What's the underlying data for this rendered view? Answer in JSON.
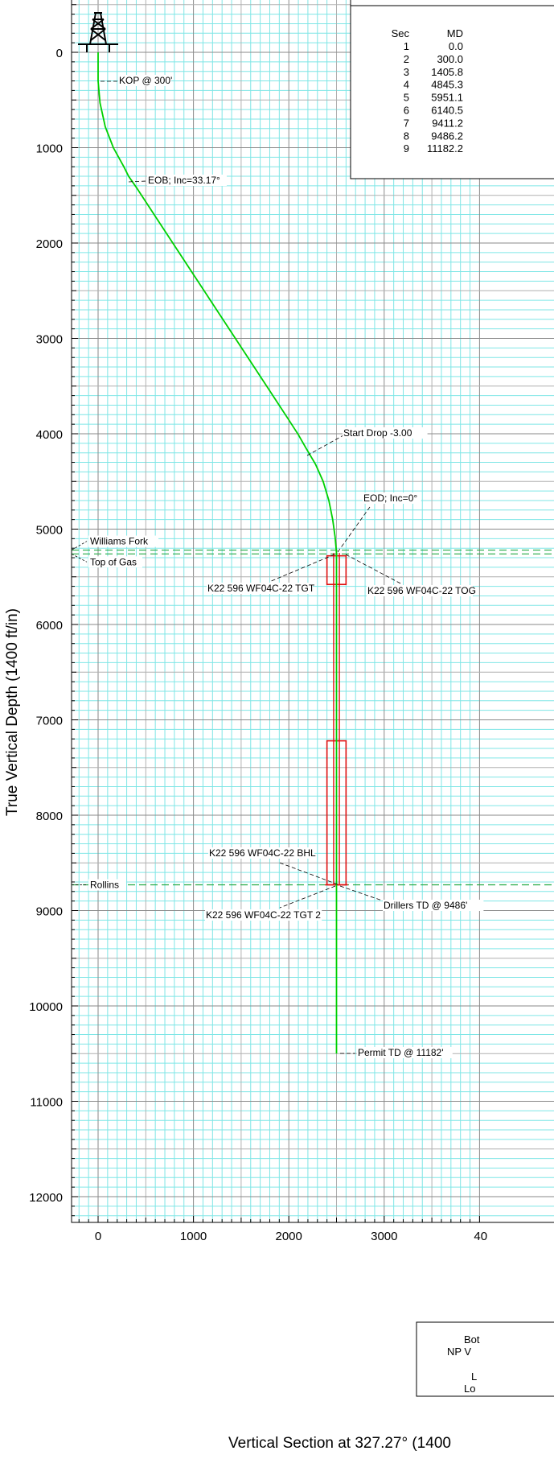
{
  "chart_data": {
    "type": "line",
    "xlabel": "Vertical Section at 327.27° (1400",
    "ylabel": "True Vertical Depth (1400 ft/in)",
    "x_ticks": [
      "0",
      "1000",
      "2000",
      "3000",
      "40"
    ],
    "y_ticks": [
      "0",
      "1000",
      "2000",
      "3000",
      "4000",
      "5000",
      "6000",
      "7000",
      "8000",
      "9000",
      "10000",
      "11000",
      "12000"
    ],
    "xlim": [
      -300,
      4000
    ],
    "ylim": [
      12150,
      -550
    ],
    "grid": true,
    "y_inverted": true,
    "series": [
      {
        "color": "#00d000",
        "x": [
          0,
          0,
          20,
          75,
          160,
          270,
          320,
          400,
          600,
          800,
          1000,
          1200,
          1400,
          1600,
          1800,
          2000,
          2100,
          2180,
          2280,
          2360,
          2420,
          2460,
          2485,
          2500,
          2500,
          2500
        ],
        "y": [
          0,
          300,
          530,
          780,
          1000,
          1200,
          1300,
          1415,
          1720,
          2025,
          2330,
          2635,
          2940,
          3245,
          3550,
          3855,
          4010,
          4150,
          4320,
          4500,
          4700,
          4900,
          5080,
          5250,
          7000,
          10500
        ]
      }
    ],
    "formations": [
      {
        "name": "Williams Fork",
        "tvd": 5220
      },
      {
        "name": "Top of Gas",
        "tvd": 5260
      },
      {
        "name": "Rollins",
        "tvd": 8730
      }
    ],
    "targets": [
      {
        "x0": 2400,
        "x1": 2600,
        "y0": 5280,
        "y1": 5580
      },
      {
        "x0": 2400,
        "x1": 2600,
        "y0": 7220,
        "y1": 8730
      }
    ],
    "annotations": [
      {
        "text": "KOP @ 300'",
        "x": 0,
        "y": 300
      },
      {
        "text": "EOB; Inc=33.17°",
        "x": 320,
        "y": 1360
      },
      {
        "text": "Start Drop -3.00",
        "x": 2180,
        "y": 4260
      },
      {
        "text": "EOD; Inc=0°",
        "x": 2500,
        "y": 5250
      },
      {
        "text": "K22 596 WF04C-22 TGT",
        "x": 2500,
        "y": 5280
      },
      {
        "text": "K22 596 WF04C-22 TOG",
        "x": 2500,
        "y": 5280
      },
      {
        "text": "K22 596 WF04C-22 BHL",
        "x": 2500,
        "y": 8730
      },
      {
        "text": "K22 596 WF04C-22 TGT 2",
        "x": 2500,
        "y": 8730
      },
      {
        "text": "Drillers TD @ 9486'",
        "x": 2500,
        "y": 8730
      },
      {
        "text": "Permit TD @ 11182'",
        "x": 2500,
        "y": 10500
      }
    ]
  },
  "section_table": {
    "headers": [
      "Sec",
      "MD"
    ],
    "rows": [
      [
        "1",
        "0.0"
      ],
      [
        "2",
        "300.0"
      ],
      [
        "3",
        "1405.8"
      ],
      [
        "4",
        "4845.3"
      ],
      [
        "5",
        "5951.1"
      ],
      [
        "6",
        "6140.5"
      ],
      [
        "7",
        "9411.2"
      ],
      [
        "8",
        "9486.2"
      ],
      [
        "9",
        "11182.2"
      ]
    ]
  },
  "info_box": {
    "line1": "Bot",
    "line2": "NP V",
    "line3": "L",
    "line4": "Lo"
  }
}
